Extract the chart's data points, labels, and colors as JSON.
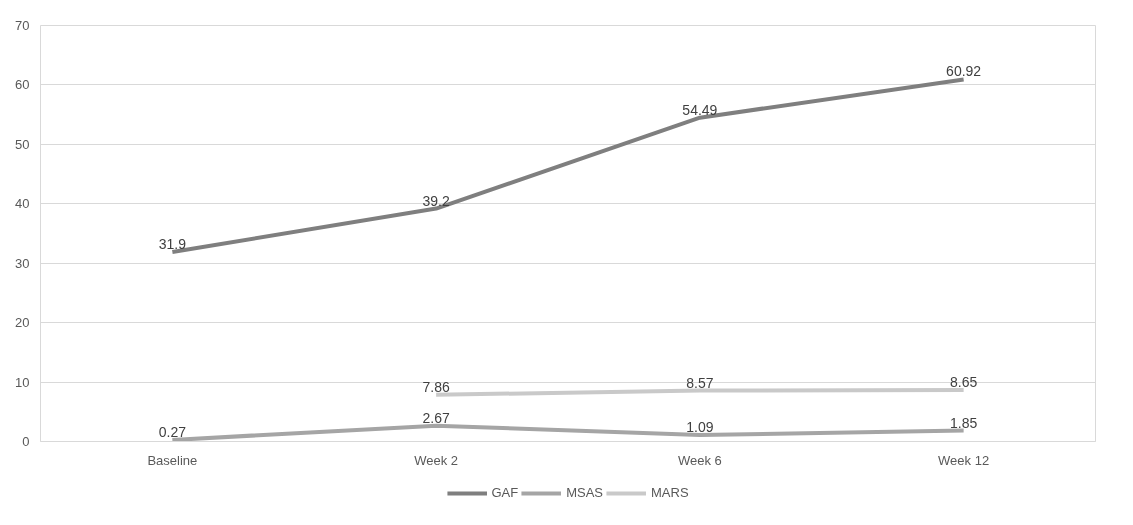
{
  "chart_data": {
    "type": "line",
    "categories": [
      "Baseline",
      "Week 2",
      "Week 6",
      "Week 12"
    ],
    "series": [
      {
        "name": "GAF",
        "color": "#7f7f7f",
        "values": [
          31.9,
          39.2,
          54.49,
          60.92
        ]
      },
      {
        "name": "MSAS",
        "color": "#a5a5a5",
        "values": [
          0.27,
          2.67,
          1.09,
          1.85
        ]
      },
      {
        "name": "MARS",
        "color": "#c9c9c9",
        "values": [
          null,
          7.86,
          8.57,
          8.65
        ]
      }
    ],
    "ylim": [
      0,
      70
    ],
    "yticks": [
      0,
      10,
      20,
      30,
      40,
      50,
      60,
      70
    ],
    "grid": "y",
    "legend": "bottom",
    "data_labels": true,
    "marker": "none",
    "line_style": "solid"
  }
}
